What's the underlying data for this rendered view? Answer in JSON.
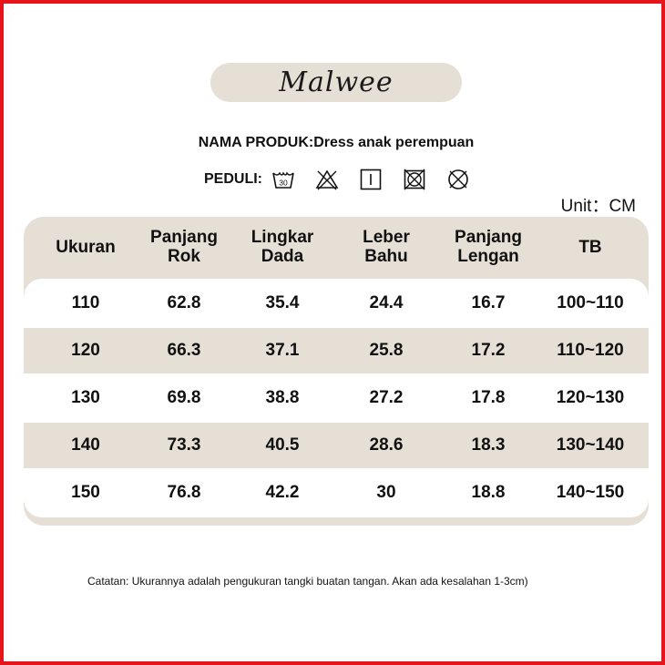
{
  "brand": {
    "logo_text": "Malwee"
  },
  "product": {
    "title": "NAMA PRODUK:Dress anak perempuan"
  },
  "care": {
    "label": "PEDULI:",
    "icons": [
      "wash-30-icon",
      "no-bleach-icon",
      "line-dry-icon",
      "no-tumble-dry-icon",
      "no-dry-clean-icon"
    ],
    "wash_temp": "30"
  },
  "unit": {
    "label": "Unit：CM"
  },
  "table": {
    "headers": [
      [
        "Ukuran"
      ],
      [
        "Panjang",
        "Rok"
      ],
      [
        "Lingkar",
        "Dada"
      ],
      [
        "Leber",
        "Bahu"
      ],
      [
        "Panjang",
        "Lengan"
      ],
      [
        "TB"
      ]
    ],
    "rows": [
      [
        "110",
        "62.8",
        "35.4",
        "24.4",
        "16.7",
        "100~110"
      ],
      [
        "120",
        "66.3",
        "37.1",
        "25.8",
        "17.2",
        "110~120"
      ],
      [
        "130",
        "69.8",
        "38.8",
        "27.2",
        "17.8",
        "120~130"
      ],
      [
        "140",
        "73.3",
        "40.5",
        "28.6",
        "18.3",
        "130~140"
      ],
      [
        "150",
        "76.8",
        "42.2",
        "30",
        "18.8",
        "140~150"
      ]
    ]
  },
  "note": {
    "text": "Catatan: Ukurannya adalah pengukuran tangki buatan tangan. Akan ada kesalahan 1-3cm)"
  },
  "colors": {
    "border": "#e8141c",
    "panel": "#e6dfd6",
    "text": "#111111"
  }
}
